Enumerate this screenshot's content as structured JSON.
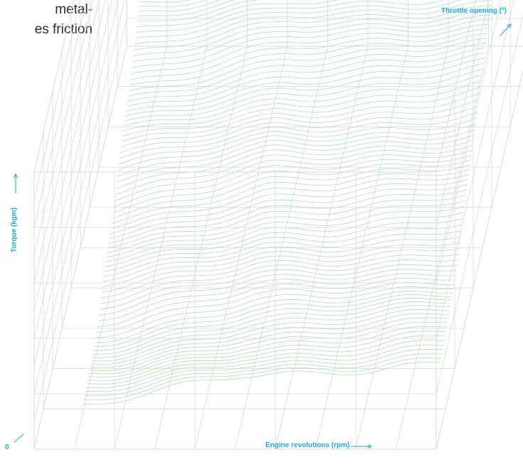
{
  "caption": {
    "line1": "metal-",
    "line2": "es friction"
  },
  "chart_data": {
    "type": "surface3d",
    "title": "",
    "xlabel": "Engine revolutions (rpm)",
    "ylabel": "Torque (kgm)",
    "zlabel": "Throttle opening (º)",
    "origin_label": "0",
    "grid": true,
    "note": "3D wireframe surface; axis ticks not printed",
    "colors": {
      "axis_text": "#1ea9e1",
      "grid": "#d9d9d9",
      "surface_low": "#9fd59a",
      "surface_high": "#9cd2d8"
    },
    "surface_height_profile_along_depth": [
      0.07,
      0.13,
      0.26,
      0.39,
      0.53,
      0.66,
      0.77,
      0.82
    ],
    "surface_height_profile_along_width": [
      0.0,
      0.04,
      0.09,
      0.14,
      0.15,
      0.17,
      0.2
    ]
  }
}
